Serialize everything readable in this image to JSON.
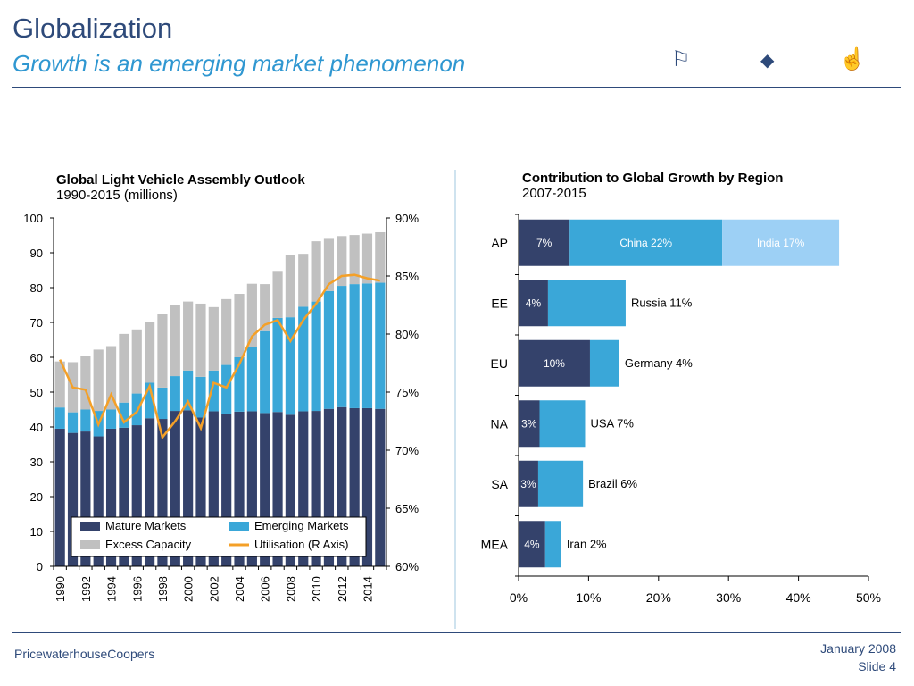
{
  "header": {
    "title": "Globalization",
    "subtitle": "Growth is an emerging market phenomenon",
    "icons": [
      "flag-icon",
      "diamond-icon",
      "thumbs-up-icon"
    ]
  },
  "footer": {
    "company": "PricewaterhouseCoopers",
    "date": "January 2008",
    "slide": "Slide 4"
  },
  "colors": {
    "navy": "#2e4a7a",
    "mature": "#34426b",
    "emerging": "#3aa7d8",
    "excess": "#c0c0c0",
    "utilisation": "#f4a028",
    "india": "#9dd0f5"
  },
  "chart_data": [
    {
      "type": "bar",
      "title": "Global Light Vehicle Assembly Outlook",
      "subtitle": "1990-2015 (millions)",
      "xlabel": "",
      "ylabel": "",
      "stacked": true,
      "categories": [
        "1990",
        "1991",
        "1992",
        "1993",
        "1994",
        "1995",
        "1996",
        "1997",
        "1998",
        "1999",
        "2000",
        "2001",
        "2002",
        "2003",
        "2004",
        "2005",
        "2006",
        "2007",
        "2008",
        "2009",
        "2010",
        "2011",
        "2012",
        "2013",
        "2014",
        "2015"
      ],
      "x_tick_labels": [
        "1990",
        "1992",
        "1994",
        "1996",
        "1998",
        "2000",
        "2002",
        "2004",
        "2006",
        "2008",
        "2010",
        "2012",
        "2014"
      ],
      "ylim": [
        0,
        100
      ],
      "y_ticks": [
        0,
        10,
        20,
        30,
        40,
        50,
        60,
        70,
        80,
        90,
        100
      ],
      "y2lim": [
        60,
        90
      ],
      "y2_ticks": [
        "60%",
        "65%",
        "70%",
        "75%",
        "80%",
        "85%",
        "90%"
      ],
      "legend_position": "bottom-inside",
      "series": [
        {
          "name": "Mature Markets",
          "values": [
            39.5,
            38.3,
            38.7,
            37.3,
            39.5,
            39.8,
            40.5,
            42.5,
            42.3,
            44.6,
            44.8,
            42.7,
            44.5,
            43.8,
            44.4,
            44.5,
            44,
            44.3,
            43.5,
            44.5,
            44.6,
            45.2,
            45.7,
            45.4,
            45.4,
            45.2
          ]
        },
        {
          "name": "Emerging Markets",
          "values": [
            6.1,
            5.9,
            6.3,
            7.3,
            5.5,
            7.2,
            9.1,
            10.2,
            9.0,
            10.0,
            11.4,
            11.7,
            11.7,
            14.0,
            15.6,
            18.5,
            23.5,
            27.0,
            28.0,
            30.0,
            31.4,
            33.8,
            34.8,
            35.6,
            35.8,
            36.2
          ]
        },
        {
          "name": "Excess Capacity",
          "values": [
            13.2,
            14.4,
            15.4,
            17.6,
            18.2,
            19.7,
            18.4,
            17.3,
            21.1,
            20.4,
            19.8,
            21.0,
            18.2,
            18.9,
            18.2,
            18.1,
            13.5,
            13.5,
            17.9,
            15.2,
            17.3,
            15.0,
            14.3,
            14.1,
            14.3,
            14.5
          ]
        },
        {
          "name": "Utilisation (R Axis)",
          "axis": "right",
          "values": [
            77.8,
            75.4,
            75.2,
            72.2,
            74.8,
            72.4,
            73.3,
            75.5,
            71.1,
            72.5,
            74.2,
            71.9,
            75.8,
            75.4,
            77.4,
            79.8,
            80.8,
            81.2,
            79.4,
            81.2,
            82.6,
            84.3,
            85.0,
            85.1,
            84.8,
            84.6
          ]
        }
      ]
    },
    {
      "type": "bar",
      "orientation": "horizontal",
      "stacked": true,
      "title": "Contribution to Global Growth by Region",
      "subtitle": "2007-2015",
      "xlabel": "",
      "ylabel": "",
      "categories": [
        "AP",
        "EE",
        "EU",
        "NA",
        "SA",
        "MEA"
      ],
      "xlim": [
        0,
        50
      ],
      "x_ticks": [
        "0%",
        "10%",
        "20%",
        "30%",
        "40%",
        "50%"
      ],
      "rows": [
        {
          "region": "AP",
          "segments": [
            {
              "label": "7%",
              "value": 7.3,
              "color": "#34426b",
              "text": "light"
            },
            {
              "label": "China 22%",
              "value": 21.8,
              "color": "#3aa7d8",
              "text": "light"
            },
            {
              "label": "India 17%",
              "value": 16.7,
              "color": "#9dd0f5",
              "text": "light"
            }
          ]
        },
        {
          "region": "EE",
          "segments": [
            {
              "label": "4%",
              "value": 4.2,
              "color": "#34426b",
              "text": "light"
            },
            {
              "label": "",
              "value": 11.1,
              "color": "#3aa7d8",
              "text": "light"
            }
          ],
          "outside_label": "Russia 11%"
        },
        {
          "region": "EU",
          "segments": [
            {
              "label": "10%",
              "value": 10.2,
              "color": "#34426b",
              "text": "light"
            },
            {
              "label": "",
              "value": 4.2,
              "color": "#3aa7d8",
              "text": "light"
            }
          ],
          "outside_label": "Germany 4%"
        },
        {
          "region": "NA",
          "segments": [
            {
              "label": "3%",
              "value": 3.0,
              "color": "#34426b",
              "text": "light"
            },
            {
              "label": "",
              "value": 6.5,
              "color": "#3aa7d8",
              "text": "light"
            }
          ],
          "outside_label": "USA 7%"
        },
        {
          "region": "SA",
          "segments": [
            {
              "label": "3%",
              "value": 2.8,
              "color": "#34426b",
              "text": "light"
            },
            {
              "label": "",
              "value": 6.4,
              "color": "#3aa7d8",
              "text": "light"
            }
          ],
          "outside_label": "Brazil 6%"
        },
        {
          "region": "MEA",
          "segments": [
            {
              "label": "4%",
              "value": 3.8,
              "color": "#34426b",
              "text": "light"
            },
            {
              "label": "",
              "value": 2.3,
              "color": "#3aa7d8",
              "text": "light"
            }
          ],
          "outside_label": "Iran 2%"
        }
      ]
    }
  ]
}
